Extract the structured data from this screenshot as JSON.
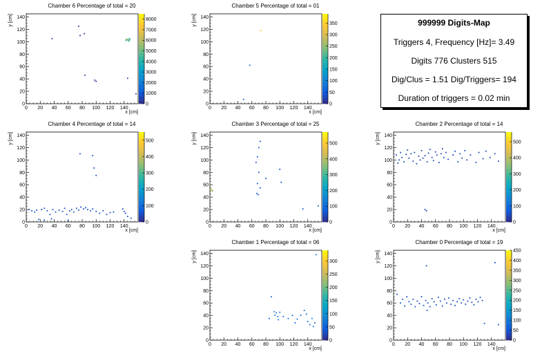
{
  "info": {
    "title": "999999 Digits-Map",
    "line1": "Triggers 4, Frequency [Hz]= 3.49",
    "line2": "Digits 776 Clusters 515",
    "line3": "Dig/Clus = 1.51 Dig/Triggers= 194",
    "line4": "Duration of triggers = 0.02 min"
  },
  "palette": [
    "#352a87",
    "#0f5cdd",
    "#1481d6",
    "#06a4ca",
    "#2eb7a4",
    "#87bf77",
    "#d1bb59",
    "#fec832",
    "#f9fb0e"
  ],
  "chart_data": [
    {
      "type": "heatmap",
      "title": "Chamber 6 Percentage of total = 20",
      "xlabel": "x [cm]",
      "ylabel": "y [cm]",
      "xlim": [
        0,
        160
      ],
      "ylim": [
        0,
        145
      ],
      "xticks": [
        0,
        20,
        40,
        60,
        80,
        100,
        120,
        140
      ],
      "yticks": [
        0,
        20,
        40,
        60,
        80,
        100,
        120,
        140
      ],
      "zlim": [
        0,
        8500
      ],
      "zticks": [
        0,
        1000,
        2000,
        3000,
        4000,
        5000,
        6000,
        7000,
        8000
      ],
      "points": [
        [
          37,
          105,
          300
        ],
        [
          75,
          125,
          300
        ],
        [
          77,
          110,
          300
        ],
        [
          83,
          113,
          300
        ],
        [
          84,
          46,
          300
        ],
        [
          98,
          38,
          300
        ],
        [
          100,
          36,
          300
        ],
        [
          143,
          104,
          5200
        ],
        [
          144,
          103,
          5600
        ],
        [
          145,
          104,
          5200
        ],
        [
          146,
          102,
          4800
        ],
        [
          147,
          104,
          5000
        ],
        [
          148,
          103,
          5400
        ],
        [
          143,
          102,
          4000
        ],
        [
          147,
          101,
          4200
        ],
        [
          148,
          105,
          3800
        ],
        [
          145,
          41,
          300
        ],
        [
          157,
          16,
          300
        ]
      ]
    },
    {
      "type": "heatmap",
      "title": "Chamber 5 Percentage of total = 01",
      "xlabel": "x [cm]",
      "ylabel": "y [cm]",
      "xlim": [
        0,
        160
      ],
      "ylim": [
        0,
        145
      ],
      "xticks": [
        0,
        20,
        40,
        60,
        80,
        100,
        120,
        140
      ],
      "yticks": [
        0,
        20,
        40,
        60,
        80,
        100,
        120,
        140
      ],
      "zlim": [
        0,
        390
      ],
      "zticks": [
        0,
        50,
        100,
        150,
        200,
        250,
        300,
        350
      ],
      "points": [
        [
          73,
          118,
          330
        ],
        [
          57,
          62,
          60
        ],
        [
          48,
          7,
          50
        ]
      ]
    },
    {
      "type": "heatmap",
      "title": "Chamber 4 Percentage of total = 14",
      "xlabel": "x [cm]",
      "ylabel": "y [cm]",
      "xlim": [
        0,
        160
      ],
      "ylim": [
        0,
        145
      ],
      "xticks": [
        0,
        20,
        40,
        60,
        80,
        100,
        120,
        140
      ],
      "yticks": [
        0,
        20,
        40,
        60,
        80,
        100,
        120,
        140
      ],
      "zlim": [
        0,
        550
      ],
      "zticks": [
        0,
        100,
        200,
        300,
        400,
        500
      ],
      "points": [
        [
          77,
          110,
          50
        ],
        [
          95,
          107,
          50
        ],
        [
          97,
          87,
          50
        ],
        [
          100,
          75,
          50
        ],
        [
          4,
          20,
          50
        ],
        [
          8,
          18,
          50
        ],
        [
          12,
          16,
          50
        ],
        [
          15,
          19,
          50
        ],
        [
          22,
          20,
          50
        ],
        [
          26,
          22,
          50
        ],
        [
          30,
          18,
          50
        ],
        [
          34,
          12,
          50
        ],
        [
          38,
          20,
          50
        ],
        [
          42,
          16,
          50
        ],
        [
          47,
          19,
          50
        ],
        [
          52,
          17,
          50
        ],
        [
          55,
          22,
          50
        ],
        [
          58,
          12,
          50
        ],
        [
          62,
          18,
          50
        ],
        [
          65,
          20,
          50
        ],
        [
          68,
          16,
          50
        ],
        [
          72,
          22,
          50
        ],
        [
          75,
          19,
          50
        ],
        [
          78,
          24,
          50
        ],
        [
          82,
          21,
          50
        ],
        [
          85,
          23,
          50
        ],
        [
          88,
          20,
          50
        ],
        [
          92,
          18,
          50
        ],
        [
          95,
          21,
          50
        ],
        [
          100,
          17,
          50
        ],
        [
          105,
          14,
          50
        ],
        [
          110,
          18,
          50
        ],
        [
          115,
          12,
          50
        ],
        [
          120,
          15,
          50
        ],
        [
          125,
          16,
          50
        ],
        [
          138,
          21,
          50
        ],
        [
          140,
          17,
          50
        ],
        [
          142,
          14,
          50
        ],
        [
          145,
          9,
          50
        ],
        [
          150,
          6,
          50
        ],
        [
          18,
          4,
          50
        ],
        [
          26,
          3,
          50
        ],
        [
          36,
          5,
          50
        ],
        [
          60,
          2,
          50
        ]
      ]
    },
    {
      "type": "heatmap",
      "title": "Chamber 3 Percentage of total = 25",
      "xlabel": "x [cm]",
      "ylabel": "y [cm]",
      "xlim": [
        0,
        160
      ],
      "ylim": [
        0,
        145
      ],
      "xticks": [
        0,
        20,
        40,
        60,
        80,
        100,
        120,
        140
      ],
      "yticks": [
        0,
        20,
        40,
        60,
        80,
        100,
        120,
        140
      ],
      "zlim": [
        0,
        570
      ],
      "zticks": [
        0,
        100,
        200,
        300,
        400,
        500
      ],
      "points": [
        [
          1,
          52,
          450
        ],
        [
          3,
          51,
          400
        ],
        [
          2,
          53,
          380
        ],
        [
          4,
          50,
          350
        ],
        [
          72,
          130,
          60
        ],
        [
          70,
          120,
          60
        ],
        [
          68,
          105,
          60
        ],
        [
          66,
          96,
          60
        ],
        [
          70,
          80,
          60
        ],
        [
          68,
          62,
          60
        ],
        [
          67,
          46,
          60
        ],
        [
          69,
          44,
          60
        ],
        [
          100,
          85,
          60
        ],
        [
          102,
          64,
          60
        ],
        [
          133,
          21,
          60
        ],
        [
          155,
          26,
          60
        ],
        [
          72,
          55,
          60
        ],
        [
          80,
          70,
          60
        ]
      ]
    },
    {
      "type": "heatmap",
      "title": "Chamber 2 Percentage of total = 14",
      "xlabel": "x [cm]",
      "ylabel": "y [cm]",
      "xlim": [
        0,
        160
      ],
      "ylim": [
        0,
        145
      ],
      "xticks": [
        0,
        20,
        40,
        60,
        80,
        100,
        120,
        140
      ],
      "yticks": [
        0,
        20,
        40,
        60,
        80,
        100,
        120,
        140
      ],
      "zlim": [
        0,
        560
      ],
      "zticks": [
        0,
        100,
        200,
        300,
        400,
        500
      ],
      "points": [
        [
          4,
          108,
          40
        ],
        [
          6,
          95,
          40
        ],
        [
          8,
          100,
          40
        ],
        [
          10,
          112,
          40
        ],
        [
          12,
          104,
          40
        ],
        [
          15,
          97,
          40
        ],
        [
          18,
          109,
          40
        ],
        [
          20,
          116,
          40
        ],
        [
          22,
          103,
          40
        ],
        [
          25,
          110,
          40
        ],
        [
          28,
          98,
          40
        ],
        [
          30,
          112,
          40
        ],
        [
          33,
          94,
          40
        ],
        [
          36,
          106,
          40
        ],
        [
          38,
          100,
          40
        ],
        [
          40,
          115,
          40
        ],
        [
          42,
          103,
          40
        ],
        [
          45,
          107,
          40
        ],
        [
          48,
          97,
          40
        ],
        [
          50,
          111,
          40
        ],
        [
          52,
          117,
          40
        ],
        [
          55,
          104,
          40
        ],
        [
          57,
          99,
          40
        ],
        [
          60,
          113,
          40
        ],
        [
          62,
          108,
          40
        ],
        [
          65,
          96,
          40
        ],
        [
          68,
          110,
          40
        ],
        [
          70,
          118,
          40
        ],
        [
          72,
          104,
          40
        ],
        [
          75,
          112,
          40
        ],
        [
          78,
          101,
          40
        ],
        [
          85,
          108,
          40
        ],
        [
          88,
          114,
          40
        ],
        [
          92,
          97,
          40
        ],
        [
          95,
          110,
          40
        ],
        [
          98,
          103,
          40
        ],
        [
          102,
          115,
          40
        ],
        [
          105,
          100,
          40
        ],
        [
          110,
          108,
          40
        ],
        [
          118,
          96,
          40
        ],
        [
          122,
          112,
          40
        ],
        [
          128,
          102,
          40
        ],
        [
          132,
          114,
          40
        ],
        [
          138,
          104,
          40
        ],
        [
          145,
          110,
          40
        ],
        [
          150,
          98,
          40
        ],
        [
          45,
          20,
          40
        ],
        [
          47,
          18,
          40
        ]
      ]
    },
    {
      "type": "heatmap",
      "title": "Chamber 1 Percentage of total = 06",
      "xlabel": "x [cm]",
      "ylabel": "y [cm]",
      "xlim": [
        0,
        160
      ],
      "ylim": [
        0,
        145
      ],
      "xticks": [
        0,
        20,
        40,
        60,
        80,
        100,
        120,
        140
      ],
      "yticks": [
        0,
        20,
        40,
        60,
        80,
        100,
        120,
        140
      ],
      "zlim": [
        0,
        340
      ],
      "zticks": [
        0,
        50,
        100,
        150,
        200,
        250,
        300
      ],
      "points": [
        [
          152,
          138,
          80
        ],
        [
          88,
          70,
          60
        ],
        [
          92,
          46,
          80
        ],
        [
          95,
          44,
          80
        ],
        [
          97,
          38,
          80
        ],
        [
          93,
          40,
          60
        ],
        [
          98,
          33,
          60
        ],
        [
          85,
          35,
          60
        ],
        [
          100,
          45,
          60
        ],
        [
          105,
          38,
          60
        ],
        [
          112,
          35,
          60
        ],
        [
          118,
          40,
          60
        ],
        [
          122,
          28,
          60
        ],
        [
          125,
          34,
          60
        ],
        [
          130,
          40,
          60
        ],
        [
          135,
          48,
          60
        ],
        [
          140,
          30,
          60
        ],
        [
          143,
          25,
          60
        ],
        [
          146,
          35,
          60
        ],
        [
          150,
          28,
          60
        ],
        [
          148,
          22,
          60
        ],
        [
          138,
          42,
          60
        ]
      ]
    },
    {
      "type": "heatmap",
      "title": "Chamber 0 Percentage of total = 19",
      "xlabel": "x [cm]",
      "ylabel": "y [cm]",
      "xlim": [
        0,
        160
      ],
      "ylim": [
        0,
        145
      ],
      "xticks": [
        0,
        20,
        40,
        60,
        80,
        100,
        120,
        140
      ],
      "yticks": [
        0,
        20,
        40,
        60,
        80,
        100,
        120,
        140
      ],
      "zlim": [
        0,
        450
      ],
      "zticks": [
        0,
        50,
        100,
        150,
        200,
        250,
        300,
        350,
        400,
        450
      ],
      "points": [
        [
          145,
          125,
          40
        ],
        [
          47,
          120,
          40
        ],
        [
          10,
          60,
          40
        ],
        [
          13,
          66,
          40
        ],
        [
          16,
          55,
          40
        ],
        [
          19,
          70,
          40
        ],
        [
          22,
          62,
          40
        ],
        [
          25,
          58,
          40
        ],
        [
          28,
          66,
          40
        ],
        [
          31,
          54,
          40
        ],
        [
          34,
          63,
          40
        ],
        [
          37,
          59,
          40
        ],
        [
          40,
          70,
          40
        ],
        [
          43,
          56,
          40
        ],
        [
          46,
          64,
          40
        ],
        [
          49,
          60,
          40
        ],
        [
          52,
          54,
          40
        ],
        [
          55,
          67,
          40
        ],
        [
          58,
          62,
          40
        ],
        [
          61,
          57,
          40
        ],
        [
          64,
          69,
          40
        ],
        [
          67,
          63,
          40
        ],
        [
          70,
          55,
          40
        ],
        [
          73,
          66,
          40
        ],
        [
          76,
          60,
          40
        ],
        [
          79,
          68,
          40
        ],
        [
          82,
          58,
          40
        ],
        [
          85,
          64,
          40
        ],
        [
          88,
          56,
          40
        ],
        [
          91,
          62,
          40
        ],
        [
          94,
          67,
          40
        ],
        [
          97,
          60,
          40
        ],
        [
          100,
          65,
          40
        ],
        [
          103,
          58,
          40
        ],
        [
          106,
          63,
          40
        ],
        [
          109,
          68,
          40
        ],
        [
          112,
          61,
          40
        ],
        [
          115,
          57,
          40
        ],
        [
          118,
          66,
          40
        ],
        [
          121,
          62,
          40
        ],
        [
          124,
          69,
          40
        ],
        [
          127,
          64,
          40
        ],
        [
          130,
          27,
          40
        ],
        [
          150,
          25,
          40
        ],
        [
          48,
          48,
          40
        ],
        [
          5,
          74,
          40
        ]
      ]
    }
  ]
}
